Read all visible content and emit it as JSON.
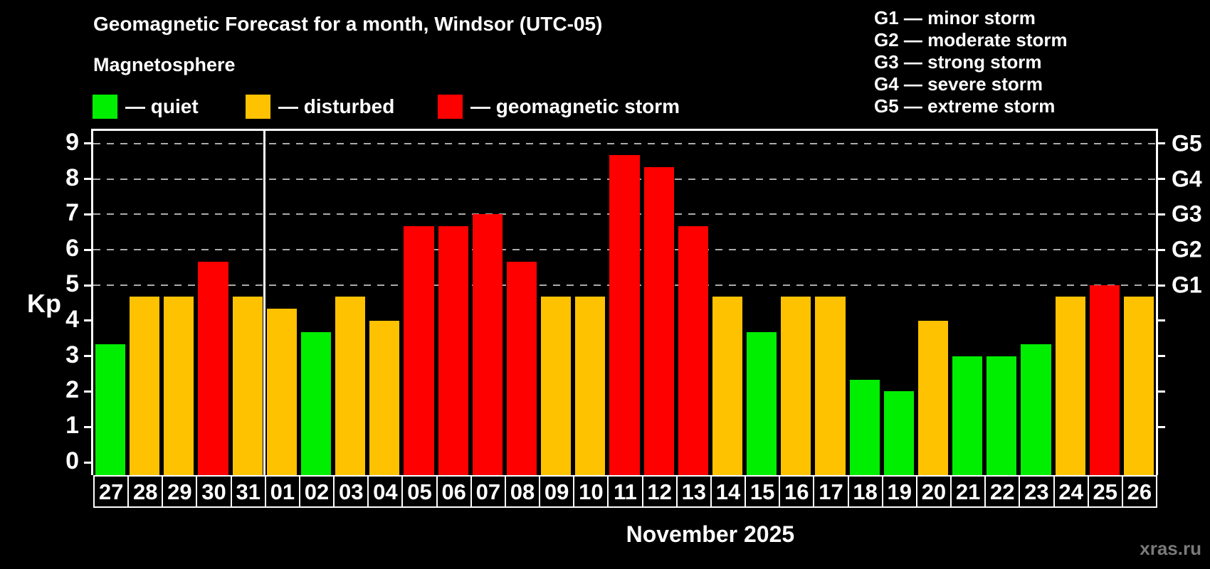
{
  "title": "Geomagnetic Forecast for a month, Windsor (UTC-05)",
  "subtitle": "Magnetosphere",
  "legend": {
    "quiet_label": "— quiet",
    "disturbed_label": "— disturbed",
    "storm_label": "— geomagnetic storm"
  },
  "g_legend": [
    "G1 — minor storm",
    "G2 — moderate storm",
    "G3 — strong storm",
    "G4 — severe storm",
    "G5 — extreme storm"
  ],
  "axis": {
    "kp_label": "Kp",
    "y_ticks": [
      0,
      1,
      2,
      3,
      4,
      5,
      6,
      7,
      8,
      9
    ],
    "right_labels": [
      "G1",
      "G2",
      "G3",
      "G4",
      "G5"
    ]
  },
  "footer": {
    "month_label": "November 2025",
    "watermark": "xras.ru"
  },
  "colors": {
    "quiet": "#00ee00",
    "disturbed": "#ffc200",
    "storm": "#ff0000",
    "gridline": "#ababab",
    "background": "#000000",
    "text": "#ffffff",
    "watermark": "#7a7a7a"
  },
  "chart_data": {
    "type": "bar",
    "title": "Geomagnetic Forecast for a month, Windsor (UTC-05)",
    "xlabel": "November 2025",
    "ylabel": "Kp",
    "ylim": [
      0,
      9.4
    ],
    "grid": "dashed horizontal at Kp 5-9",
    "g_levels": {
      "G1": 5,
      "G2": 6,
      "G3": 7,
      "G4": 8,
      "G5": 9
    },
    "month_separator_after_index": 4,
    "categories": [
      "27",
      "28",
      "29",
      "30",
      "31",
      "01",
      "02",
      "03",
      "04",
      "05",
      "06",
      "07",
      "08",
      "09",
      "10",
      "11",
      "12",
      "13",
      "14",
      "15",
      "16",
      "17",
      "18",
      "19",
      "20",
      "21",
      "22",
      "23",
      "24",
      "25",
      "26"
    ],
    "values": [
      3.33,
      4.67,
      4.67,
      5.67,
      4.67,
      4.33,
      3.67,
      4.67,
      4.0,
      6.67,
      6.67,
      7.0,
      5.67,
      4.67,
      4.67,
      8.67,
      8.33,
      6.67,
      4.67,
      3.67,
      4.67,
      4.67,
      2.33,
      2.0,
      4.0,
      3.0,
      3.0,
      3.33,
      4.67,
      5.0,
      4.67
    ],
    "statuses": [
      "quiet",
      "disturbed",
      "disturbed",
      "storm",
      "disturbed",
      "disturbed",
      "quiet",
      "disturbed",
      "disturbed",
      "storm",
      "storm",
      "storm",
      "storm",
      "disturbed",
      "disturbed",
      "storm",
      "storm",
      "storm",
      "disturbed",
      "quiet",
      "disturbed",
      "disturbed",
      "quiet",
      "quiet",
      "disturbed",
      "quiet",
      "quiet",
      "quiet",
      "disturbed",
      "storm",
      "disturbed"
    ]
  }
}
